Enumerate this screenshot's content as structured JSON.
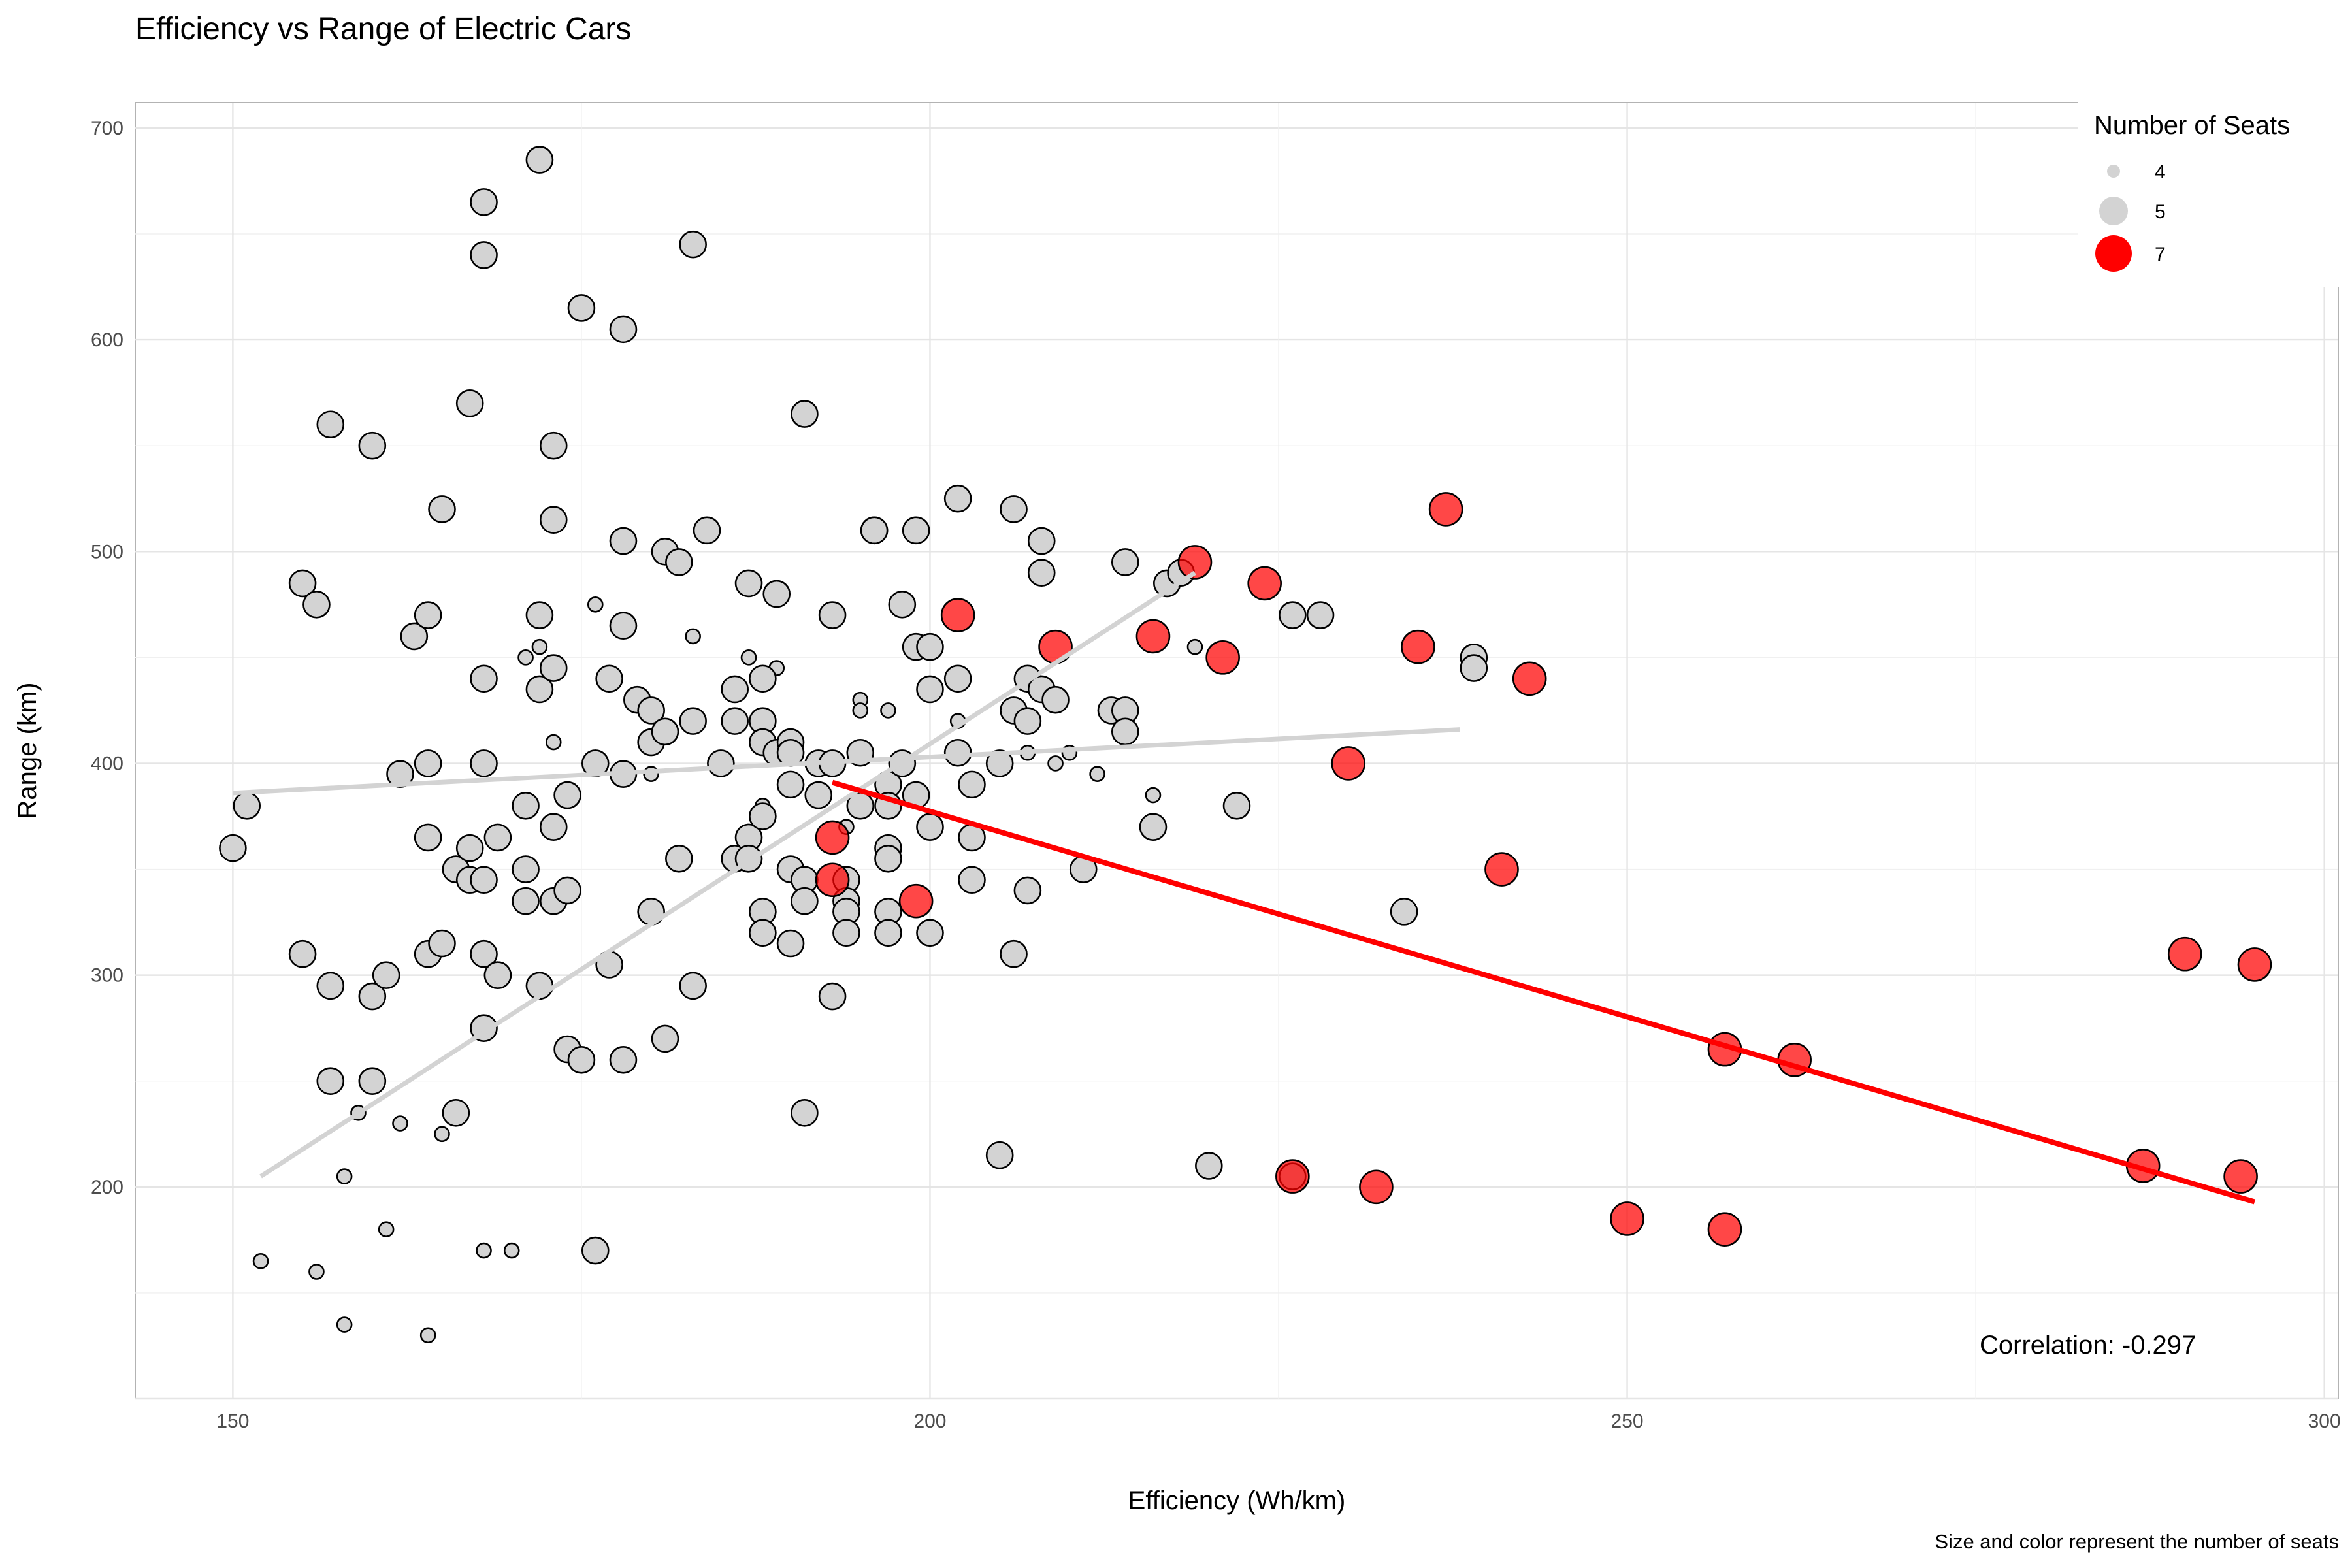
{
  "chart_data": {
    "type": "scatter",
    "title": "Efficiency vs Range of Electric Cars",
    "xlabel": "Efficiency (Wh/km)",
    "ylabel": "Range (km)",
    "caption": "Size and color represent the number of seats",
    "annotation": "Correlation:  -0.297",
    "xlim": [
      143,
      301
    ],
    "ylim": [
      100,
      712
    ],
    "x_ticks": [
      150,
      200,
      250,
      300
    ],
    "y_ticks": [
      200,
      300,
      400,
      500,
      600,
      700
    ],
    "grid": true,
    "legend": {
      "title": "Number of Seats",
      "position": "top-right",
      "entries": [
        {
          "label": "4",
          "seats": 4,
          "color": "#d3d3d3"
        },
        {
          "label": "5",
          "seats": 5,
          "color": "#d3d3d3"
        },
        {
          "label": "7",
          "seats": 7,
          "color": "#ff0000"
        }
      ]
    },
    "colors": {
      "4": "#d3d3d3",
      "5": "#d3d3d3",
      "7": "#ff0000",
      "trend_7": "#ff0000",
      "trend_other": "#d3d3d3"
    },
    "trend_lines": [
      {
        "group": "4",
        "x": [
          150,
          238
        ],
        "y": [
          386,
          416
        ],
        "color": "#d3d3d3"
      },
      {
        "group": "5",
        "x": [
          152,
          219
        ],
        "y": [
          205,
          490
        ],
        "color": "#d3d3d3"
      },
      {
        "group": "7",
        "x": [
          193,
          295
        ],
        "y": [
          391,
          193
        ],
        "color": "#ff0000"
      }
    ],
    "series": [
      {
        "name": "4",
        "seats": 4,
        "points": [
          [
            152,
            165
          ],
          [
            156,
            160
          ],
          [
            158,
            205
          ],
          [
            158,
            135
          ],
          [
            159,
            235
          ],
          [
            161,
            180
          ],
          [
            162,
            230
          ],
          [
            165,
            225
          ],
          [
            164,
            130
          ],
          [
            168,
            170
          ],
          [
            170,
            170
          ],
          [
            171,
            450
          ],
          [
            173,
            410
          ],
          [
            172,
            455
          ],
          [
            176,
            475
          ],
          [
            180,
            395
          ],
          [
            183,
            460
          ],
          [
            187,
            450
          ],
          [
            188,
            380
          ],
          [
            189,
            445
          ],
          [
            195,
            430
          ],
          [
            195,
            425
          ],
          [
            197,
            425
          ],
          [
            202,
            420
          ],
          [
            207,
            405
          ],
          [
            209,
            400
          ],
          [
            210,
            405
          ],
          [
            212,
            395
          ],
          [
            216,
            385
          ],
          [
            219,
            455
          ],
          [
            194,
            370
          ]
        ]
      },
      {
        "name": "5",
        "seats": 5,
        "points": [
          [
            150,
            360
          ],
          [
            151,
            380
          ],
          [
            155,
            485
          ],
          [
            156,
            475
          ],
          [
            157,
            560
          ],
          [
            160,
            550
          ],
          [
            155,
            310
          ],
          [
            157,
            295
          ],
          [
            157,
            250
          ],
          [
            160,
            250
          ],
          [
            160,
            290
          ],
          [
            161,
            300
          ],
          [
            162,
            395
          ],
          [
            163,
            460
          ],
          [
            164,
            470
          ],
          [
            164,
            400
          ],
          [
            164,
            365
          ],
          [
            164,
            310
          ],
          [
            165,
            520
          ],
          [
            165,
            315
          ],
          [
            166,
            350
          ],
          [
            166,
            235
          ],
          [
            167,
            570
          ],
          [
            167,
            360
          ],
          [
            167,
            345
          ],
          [
            168,
            665
          ],
          [
            168,
            640
          ],
          [
            168,
            440
          ],
          [
            168,
            400
          ],
          [
            168,
            345
          ],
          [
            168,
            310
          ],
          [
            168,
            275
          ],
          [
            169,
            365
          ],
          [
            169,
            300
          ],
          [
            169,
            300
          ],
          [
            171,
            380
          ],
          [
            171,
            350
          ],
          [
            171,
            335
          ],
          [
            172,
            685
          ],
          [
            172,
            470
          ],
          [
            172,
            435
          ],
          [
            172,
            295
          ],
          [
            173,
            550
          ],
          [
            173,
            515
          ],
          [
            173,
            445
          ],
          [
            173,
            370
          ],
          [
            173,
            335
          ],
          [
            174,
            385
          ],
          [
            174,
            340
          ],
          [
            174,
            265
          ],
          [
            175,
            615
          ],
          [
            175,
            260
          ],
          [
            176,
            400
          ],
          [
            176,
            170
          ],
          [
            177,
            440
          ],
          [
            177,
            305
          ],
          [
            178,
            605
          ],
          [
            178,
            505
          ],
          [
            178,
            465
          ],
          [
            178,
            395
          ],
          [
            178,
            260
          ],
          [
            179,
            430
          ],
          [
            180,
            425
          ],
          [
            180,
            410
          ],
          [
            180,
            330
          ],
          [
            181,
            500
          ],
          [
            181,
            415
          ],
          [
            181,
            270
          ],
          [
            182,
            495
          ],
          [
            182,
            355
          ],
          [
            183,
            645
          ],
          [
            183,
            420
          ],
          [
            183,
            295
          ],
          [
            184,
            510
          ],
          [
            185,
            400
          ],
          [
            186,
            435
          ],
          [
            186,
            420
          ],
          [
            186,
            355
          ],
          [
            187,
            485
          ],
          [
            187,
            365
          ],
          [
            187,
            355
          ],
          [
            188,
            440
          ],
          [
            188,
            420
          ],
          [
            188,
            410
          ],
          [
            188,
            375
          ],
          [
            188,
            330
          ],
          [
            188,
            320
          ],
          [
            189,
            480
          ],
          [
            189,
            405
          ],
          [
            190,
            410
          ],
          [
            190,
            405
          ],
          [
            190,
            390
          ],
          [
            190,
            350
          ],
          [
            190,
            315
          ],
          [
            191,
            565
          ],
          [
            191,
            345
          ],
          [
            191,
            335
          ],
          [
            191,
            235
          ],
          [
            192,
            400
          ],
          [
            192,
            385
          ],
          [
            193,
            470
          ],
          [
            193,
            400
          ],
          [
            193,
            290
          ],
          [
            194,
            345
          ],
          [
            194,
            335
          ],
          [
            194,
            330
          ],
          [
            194,
            320
          ],
          [
            195,
            405
          ],
          [
            195,
            380
          ],
          [
            196,
            510
          ],
          [
            196,
            510
          ],
          [
            197,
            390
          ],
          [
            197,
            380
          ],
          [
            197,
            360
          ],
          [
            197,
            355
          ],
          [
            197,
            330
          ],
          [
            197,
            320
          ],
          [
            198,
            475
          ],
          [
            198,
            400
          ],
          [
            199,
            510
          ],
          [
            199,
            455
          ],
          [
            199,
            385
          ],
          [
            200,
            455
          ],
          [
            200,
            435
          ],
          [
            200,
            370
          ],
          [
            200,
            320
          ],
          [
            202,
            525
          ],
          [
            202,
            440
          ],
          [
            202,
            405
          ],
          [
            203,
            390
          ],
          [
            203,
            365
          ],
          [
            203,
            345
          ],
          [
            205,
            400
          ],
          [
            205,
            215
          ],
          [
            206,
            520
          ],
          [
            206,
            425
          ],
          [
            206,
            310
          ],
          [
            207,
            440
          ],
          [
            207,
            420
          ],
          [
            207,
            340
          ],
          [
            208,
            505
          ],
          [
            208,
            490
          ],
          [
            208,
            435
          ],
          [
            209,
            430
          ],
          [
            211,
            350
          ],
          [
            213,
            425
          ],
          [
            214,
            495
          ],
          [
            214,
            425
          ],
          [
            214,
            415
          ],
          [
            216,
            370
          ],
          [
            217,
            485
          ],
          [
            218,
            490
          ],
          [
            220,
            210
          ],
          [
            222,
            380
          ],
          [
            226,
            470
          ],
          [
            226,
            205
          ],
          [
            228,
            470
          ],
          [
            234,
            330
          ],
          [
            239,
            450
          ],
          [
            239,
            445
          ]
        ]
      },
      {
        "name": "7",
        "seats": 7,
        "points": [
          [
            193,
            365
          ],
          [
            193,
            345
          ],
          [
            199,
            335
          ],
          [
            202,
            470
          ],
          [
            209,
            455
          ],
          [
            216,
            460
          ],
          [
            219,
            495
          ],
          [
            221,
            450
          ],
          [
            224,
            485
          ],
          [
            226,
            205
          ],
          [
            230,
            400
          ],
          [
            232,
            200
          ],
          [
            235,
            455
          ],
          [
            237,
            520
          ],
          [
            241,
            350
          ],
          [
            243,
            440
          ],
          [
            250,
            185
          ],
          [
            257,
            265
          ],
          [
            257,
            180
          ],
          [
            262,
            260
          ],
          [
            287,
            210
          ],
          [
            290,
            310
          ],
          [
            294,
            205
          ],
          [
            295,
            305
          ]
        ]
      }
    ]
  }
}
